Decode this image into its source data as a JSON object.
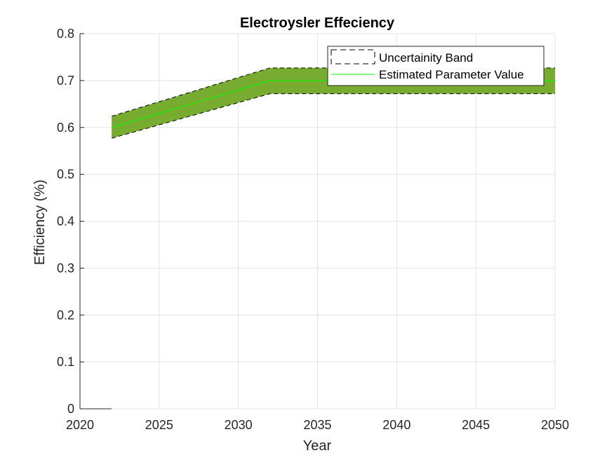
{
  "chart_data": {
    "type": "area",
    "title": "Electroysler Effeciency",
    "xlabel": "Year",
    "ylabel": "Efficiency (%)",
    "xlim": [
      2020,
      2050
    ],
    "ylim": [
      0,
      0.8
    ],
    "x_ticks": [
      "2020",
      "2025",
      "2030",
      "2035",
      "2040",
      "2045",
      "2050"
    ],
    "y_ticks": [
      "0",
      "0.1",
      "0.2",
      "0.3",
      "0.4",
      "0.5",
      "0.6",
      "0.7",
      "0.8"
    ],
    "grid": true,
    "legend_position": "top-right",
    "x": [
      2022,
      2032,
      2050
    ],
    "series": [
      {
        "name": "Uncertainity Band",
        "kind": "band",
        "lower": [
          0.577,
          0.672,
          0.672
        ],
        "upper": [
          0.624,
          0.727,
          0.727
        ],
        "color": "#77ac30"
      },
      {
        "name": "Estimated Parameter Value",
        "kind": "line",
        "values": [
          0.6,
          0.7,
          0.7
        ],
        "color": "#00ff00"
      }
    ]
  }
}
